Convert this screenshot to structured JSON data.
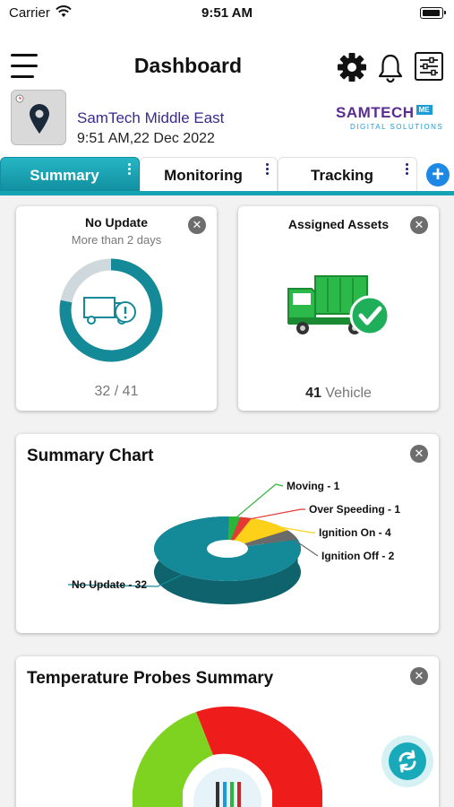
{
  "status_bar": {
    "carrier": "Carrier",
    "time": "9:51 AM"
  },
  "header": {
    "title": "Dashboard"
  },
  "company": {
    "name": "SamTech Middle East",
    "datetime": "9:51 AM,22 Dec 2022",
    "logo_main": "SAMTECH",
    "logo_badge": "ME",
    "logo_sub": "DIGITAL SOLUTIONS"
  },
  "tabs": [
    {
      "label": "Summary",
      "active": true
    },
    {
      "label": "Monitoring",
      "active": false
    },
    {
      "label": "Tracking",
      "active": false
    }
  ],
  "no_update_card": {
    "title": "No Update",
    "subtitle": "More than 2 days",
    "count": "32 / 41",
    "fraction": 0.78
  },
  "assigned_card": {
    "title": "Assigned Assets",
    "count_value": "41",
    "count_unit": "Vehicle"
  },
  "summary_chart": {
    "title": "Summary Chart",
    "chart_data": {
      "type": "pie",
      "slices": [
        {
          "label": "No Update - 32",
          "value": 32,
          "color": "#148a98"
        },
        {
          "label": "Moving - 1",
          "value": 1,
          "color": "#2db43a"
        },
        {
          "label": "Over Speeding - 1",
          "value": 1,
          "color": "#e53935"
        },
        {
          "label": "Ignition On - 4",
          "value": 4,
          "color": "#fdd11a"
        },
        {
          "label": "Ignition Off - 2",
          "value": 2,
          "color": "#6a6a6a"
        }
      ]
    }
  },
  "temperature_card": {
    "title": "Temperature Probes Summary"
  },
  "colors": {
    "accent": "#15a3b4",
    "brand_purple": "#5a2d91",
    "add_blue": "#1e88e5"
  }
}
